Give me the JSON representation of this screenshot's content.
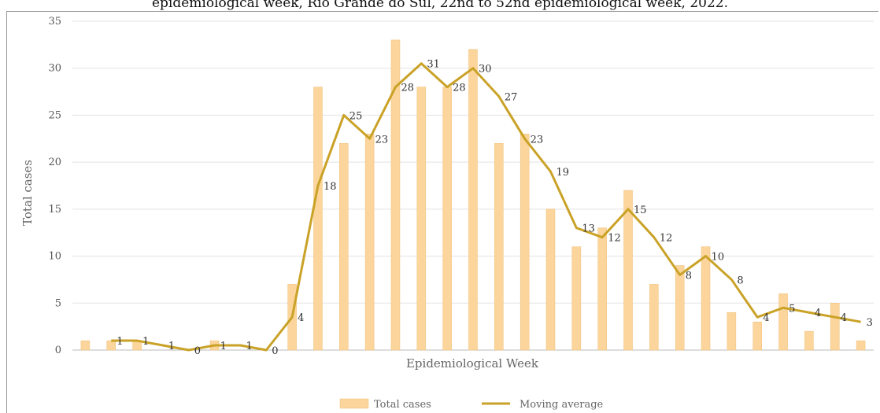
{
  "title_fragment": "epidemiological week, Rio Grande do Sul, 22nd to 52nd epidemiological week, 2022.",
  "chart_data": {
    "type": "bar",
    "xlabel": "Epidemiological Week",
    "ylabel": "Total cases",
    "ylim": [
      0,
      35
    ],
    "yticks": [
      0,
      5,
      10,
      15,
      20,
      25,
      30,
      35
    ],
    "grid": true,
    "legend_position": "bottom",
    "series": [
      {
        "name": "Total cases",
        "kind": "bar",
        "color": "#fbd59b",
        "values": [
          1,
          1,
          1,
          0,
          0,
          1,
          0,
          0,
          7,
          28,
          22,
          23,
          33,
          28,
          28,
          32,
          22,
          23,
          15,
          11,
          13,
          17,
          7,
          9,
          11,
          4,
          3,
          6,
          2,
          5,
          1
        ]
      },
      {
        "name": "Moving average",
        "kind": "line",
        "color": "#c9a227",
        "values": [
          null,
          1,
          1,
          0.5,
          0,
          0.5,
          0.5,
          0,
          3.5,
          17.5,
          25,
          22.5,
          28,
          30.5,
          28,
          30,
          27,
          22.5,
          19,
          13,
          12,
          15,
          12,
          8,
          10,
          7.5,
          3.5,
          4.5,
          4,
          3.5,
          3
        ],
        "data_labels": [
          null,
          "1",
          "1",
          "1",
          "0",
          "1",
          "1",
          "0",
          "4",
          "18",
          "25",
          "23",
          "28",
          "31",
          "28",
          "30",
          "27",
          "23",
          "19",
          "13",
          "12",
          "15",
          "12",
          "8",
          "10",
          "8",
          "4",
          "5",
          "4",
          "4",
          "3"
        ]
      }
    ]
  }
}
